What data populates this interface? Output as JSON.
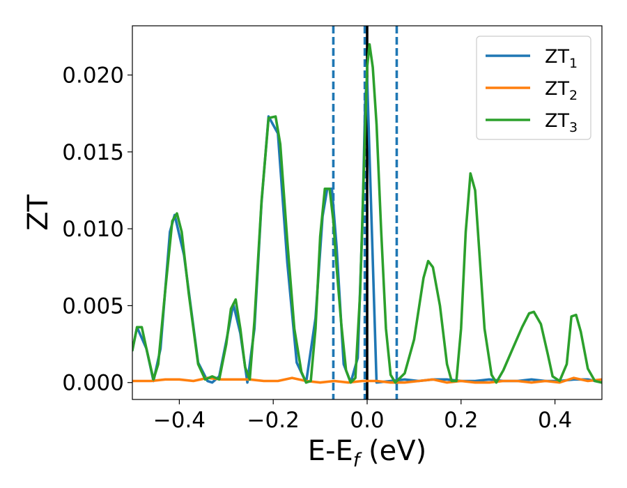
{
  "chart_data": {
    "type": "line",
    "xlabel": "E-E",
    "xlabel_sub": "f",
    "xlabel_unit": " (eV)",
    "ylabel": "ZT",
    "xlim": [
      -0.5,
      0.5
    ],
    "ylim": [
      -0.0011,
      0.0232
    ],
    "grid": false,
    "legend_position": "top-right",
    "x_ticks": [
      -0.4,
      -0.2,
      0.0,
      0.2,
      0.4
    ],
    "x_tick_labels": [
      "−0.4",
      "−0.2",
      "0.0",
      "0.2",
      "0.4"
    ],
    "y_ticks": [
      0.0,
      0.005,
      0.01,
      0.015,
      0.02
    ],
    "y_tick_labels": [
      "0.000",
      "0.005",
      "0.010",
      "0.015",
      "0.020"
    ],
    "vlines": [
      {
        "x": -0.072,
        "style": "dashed",
        "color": "#1f77b4"
      },
      {
        "x": -0.005,
        "style": "dashed",
        "color": "#1f77b4"
      },
      {
        "x": 0.0,
        "style": "solid",
        "color": "#000000"
      },
      {
        "x": 0.063,
        "style": "dashed",
        "color": "#1f77b4"
      }
    ],
    "series": [
      {
        "name": "ZT",
        "sub": "1",
        "color": "#1f77b4",
        "x": [
          -0.5,
          -0.49,
          -0.47,
          -0.455,
          -0.44,
          -0.42,
          -0.41,
          -0.39,
          -0.36,
          -0.34,
          -0.33,
          -0.315,
          -0.3,
          -0.285,
          -0.27,
          -0.255,
          -0.24,
          -0.225,
          -0.21,
          -0.19,
          -0.17,
          -0.15,
          -0.13,
          -0.11,
          -0.095,
          -0.085,
          -0.075,
          -0.065,
          -0.05,
          -0.035,
          -0.02,
          -0.01,
          -0.004,
          0.0,
          0.02,
          0.05,
          0.08,
          0.11,
          0.14,
          0.17,
          0.2,
          0.23,
          0.26,
          0.29,
          0.32,
          0.35,
          0.38,
          0.41,
          0.44,
          0.47,
          0.5
        ],
        "y": [
          0.0021,
          0.0036,
          0.0022,
          0.0001,
          0.0022,
          0.0098,
          0.0109,
          0.0083,
          0.0013,
          0.0001,
          0.0,
          0.0004,
          0.0027,
          0.0051,
          0.0032,
          0.0,
          0.0035,
          0.0117,
          0.0173,
          0.0162,
          0.0078,
          0.0013,
          0.0,
          0.0042,
          0.0108,
          0.0126,
          0.0126,
          0.0088,
          0.0012,
          0.0,
          0.0016,
          0.0105,
          0.0185,
          0.0198,
          0.0,
          0.0001,
          0.0002,
          0.0001,
          0.0002,
          0.0002,
          0.0001,
          0.0001,
          0.0002,
          0.0001,
          0.0001,
          0.0002,
          0.0001,
          0.0001,
          0.0002,
          0.0002,
          0.0
        ]
      },
      {
        "name": "ZT",
        "sub": "2",
        "color": "#ff7f0e",
        "x": [
          -0.5,
          -0.46,
          -0.43,
          -0.4,
          -0.37,
          -0.34,
          -0.31,
          -0.28,
          -0.25,
          -0.22,
          -0.19,
          -0.16,
          -0.13,
          -0.1,
          -0.07,
          -0.04,
          -0.01,
          0.02,
          0.05,
          0.08,
          0.11,
          0.14,
          0.17,
          0.2,
          0.23,
          0.26,
          0.29,
          0.32,
          0.35,
          0.38,
          0.41,
          0.44,
          0.47,
          0.5
        ],
        "y": [
          0.0001,
          0.0001,
          0.0002,
          0.0002,
          0.0001,
          0.0003,
          0.0002,
          0.0002,
          0.0002,
          0.0001,
          0.0001,
          0.0003,
          0.0001,
          0.0,
          0.0001,
          0.0,
          0.0001,
          0.0001,
          0.0,
          0.0,
          0.0001,
          0.0002,
          0.0,
          0.0001,
          0.0,
          0.0,
          0.0001,
          0.0001,
          0.0,
          0.0001,
          0.0,
          0.0003,
          0.0001,
          0.0002
        ]
      },
      {
        "name": "ZT",
        "sub": "3",
        "color": "#2ca02c",
        "x": [
          -0.5,
          -0.49,
          -0.48,
          -0.47,
          -0.455,
          -0.445,
          -0.43,
          -0.415,
          -0.405,
          -0.395,
          -0.38,
          -0.36,
          -0.345,
          -0.33,
          -0.315,
          -0.3,
          -0.29,
          -0.28,
          -0.27,
          -0.26,
          -0.25,
          -0.24,
          -0.225,
          -0.21,
          -0.195,
          -0.185,
          -0.17,
          -0.155,
          -0.14,
          -0.13,
          -0.12,
          -0.11,
          -0.1,
          -0.09,
          -0.08,
          -0.072,
          -0.065,
          -0.055,
          -0.045,
          -0.035,
          -0.025,
          -0.015,
          -0.008,
          0.0,
          0.005,
          0.012,
          0.02,
          0.03,
          0.04,
          0.05,
          0.06,
          0.08,
          0.1,
          0.12,
          0.13,
          0.14,
          0.155,
          0.17,
          0.18,
          0.19,
          0.2,
          0.21,
          0.22,
          0.23,
          0.24,
          0.25,
          0.265,
          0.275,
          0.29,
          0.31,
          0.33,
          0.345,
          0.355,
          0.37,
          0.385,
          0.395,
          0.41,
          0.425,
          0.435,
          0.445,
          0.455,
          0.47,
          0.485,
          0.5
        ],
        "y": [
          0.0021,
          0.0036,
          0.0036,
          0.0022,
          0.0002,
          0.0012,
          0.006,
          0.0105,
          0.011,
          0.0098,
          0.0058,
          0.0012,
          0.0002,
          0.0004,
          0.0002,
          0.0025,
          0.0048,
          0.0054,
          0.0035,
          0.001,
          0.0002,
          0.004,
          0.0118,
          0.0172,
          0.0173,
          0.0155,
          0.0092,
          0.0035,
          0.0007,
          0.0,
          0.0001,
          0.0035,
          0.0095,
          0.0126,
          0.0126,
          0.0105,
          0.0075,
          0.0038,
          0.0008,
          0.0,
          0.0003,
          0.0058,
          0.0128,
          0.0205,
          0.022,
          0.0205,
          0.0168,
          0.0098,
          0.0035,
          0.0005,
          0.0,
          0.0006,
          0.0028,
          0.0068,
          0.0079,
          0.0075,
          0.005,
          0.0012,
          0.0001,
          0.0001,
          0.0035,
          0.0098,
          0.0136,
          0.0125,
          0.008,
          0.0035,
          0.0005,
          0.0,
          0.0008,
          0.0022,
          0.0036,
          0.0045,
          0.0046,
          0.0038,
          0.0018,
          0.0004,
          0.0001,
          0.0012,
          0.0043,
          0.0044,
          0.0033,
          0.0009,
          0.0001,
          0.0
        ]
      }
    ]
  }
}
